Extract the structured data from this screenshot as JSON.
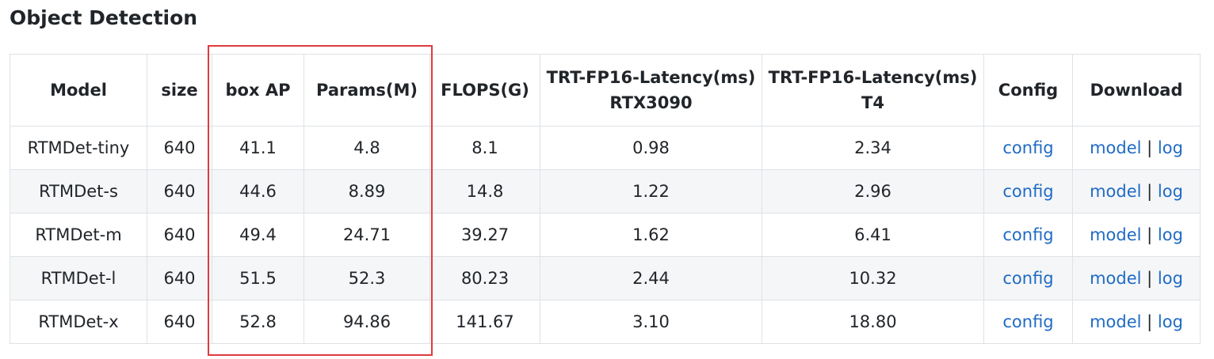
{
  "title": "Object Detection",
  "table": {
    "headers": [
      [
        "Model"
      ],
      [
        "size"
      ],
      [
        "box AP"
      ],
      [
        "Params(M)"
      ],
      [
        "FLOPS(G)"
      ],
      [
        "TRT-FP16-Latency(ms)",
        "RTX3090"
      ],
      [
        "TRT-FP16-Latency(ms)",
        "T4"
      ],
      [
        "Config"
      ],
      [
        "Download"
      ]
    ],
    "separator": "|",
    "rows": [
      {
        "cells": [
          "RTMDet-tiny",
          "640",
          "41.1",
          "4.8",
          "8.1",
          "0.98",
          "2.34"
        ],
        "config": "config",
        "download": [
          "model",
          "log"
        ]
      },
      {
        "cells": [
          "RTMDet-s",
          "640",
          "44.6",
          "8.89",
          "14.8",
          "1.22",
          "2.96"
        ],
        "config": "config",
        "download": [
          "model",
          "log"
        ]
      },
      {
        "cells": [
          "RTMDet-m",
          "640",
          "49.4",
          "24.71",
          "39.27",
          "1.62",
          "6.41"
        ],
        "config": "config",
        "download": [
          "model",
          "log"
        ]
      },
      {
        "cells": [
          "RTMDet-l",
          "640",
          "51.5",
          "52.3",
          "80.23",
          "2.44",
          "10.32"
        ],
        "config": "config",
        "download": [
          "model",
          "log"
        ]
      },
      {
        "cells": [
          "RTMDet-x",
          "640",
          "52.8",
          "94.86",
          "141.67",
          "3.10",
          "18.80"
        ],
        "config": "config",
        "download": [
          "model",
          "log"
        ]
      }
    ]
  }
}
